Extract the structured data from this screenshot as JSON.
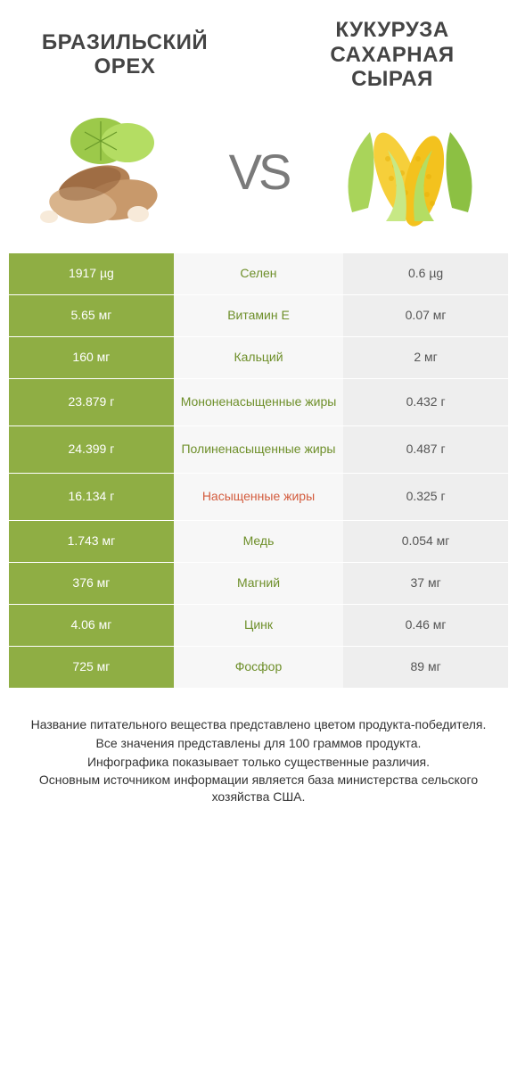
{
  "colors": {
    "left_winner": "#8fae44",
    "left_plain": "#eeeeee",
    "mid_bg": "#f7f7f7",
    "mid_green": "#6e8f2a",
    "mid_red": "#d35c3e",
    "right_winner": "#e06947",
    "right_plain": "#eeeeee",
    "plain_text": "#555555"
  },
  "header": {
    "left_title": "БРАЗИЛЬСКИЙ ОРЕХ",
    "right_title": "КУКУРУЗА САХАРНАЯ СЫРАЯ",
    "vs": "VS"
  },
  "rows": [
    {
      "name": "Селен",
      "left": "1917 µg",
      "right": "0.6 µg",
      "winner": "left",
      "name_color": "green"
    },
    {
      "name": "Витамин E",
      "left": "5.65 мг",
      "right": "0.07 мг",
      "winner": "left",
      "name_color": "green"
    },
    {
      "name": "Кальций",
      "left": "160 мг",
      "right": "2 мг",
      "winner": "left",
      "name_color": "green"
    },
    {
      "name": "Мононенасыщенные жиры",
      "left": "23.879 г",
      "right": "0.432 г",
      "winner": "left",
      "name_color": "green"
    },
    {
      "name": "Полиненасыщенные жиры",
      "left": "24.399 г",
      "right": "0.487 г",
      "winner": "left",
      "name_color": "green"
    },
    {
      "name": "Насыщенные жиры",
      "left": "16.134 г",
      "right": "0.325 г",
      "winner": "left",
      "name_color": "red"
    },
    {
      "name": "Медь",
      "left": "1.743 мг",
      "right": "0.054 мг",
      "winner": "left",
      "name_color": "green"
    },
    {
      "name": "Магний",
      "left": "376 мг",
      "right": "37 мг",
      "winner": "left",
      "name_color": "green"
    },
    {
      "name": "Цинк",
      "left": "4.06 мг",
      "right": "0.46 мг",
      "winner": "left",
      "name_color": "green"
    },
    {
      "name": "Фосфор",
      "left": "725 мг",
      "right": "89 мг",
      "winner": "left",
      "name_color": "green"
    }
  ],
  "footnotes": [
    "Название питательного вещества представлено цветом продукта-победителя.",
    "Все значения представлены для 100 граммов продукта.",
    "Инфографика показывает только существенные различия.",
    "Основным источником информации является база министерства сельского хозяйства США."
  ]
}
